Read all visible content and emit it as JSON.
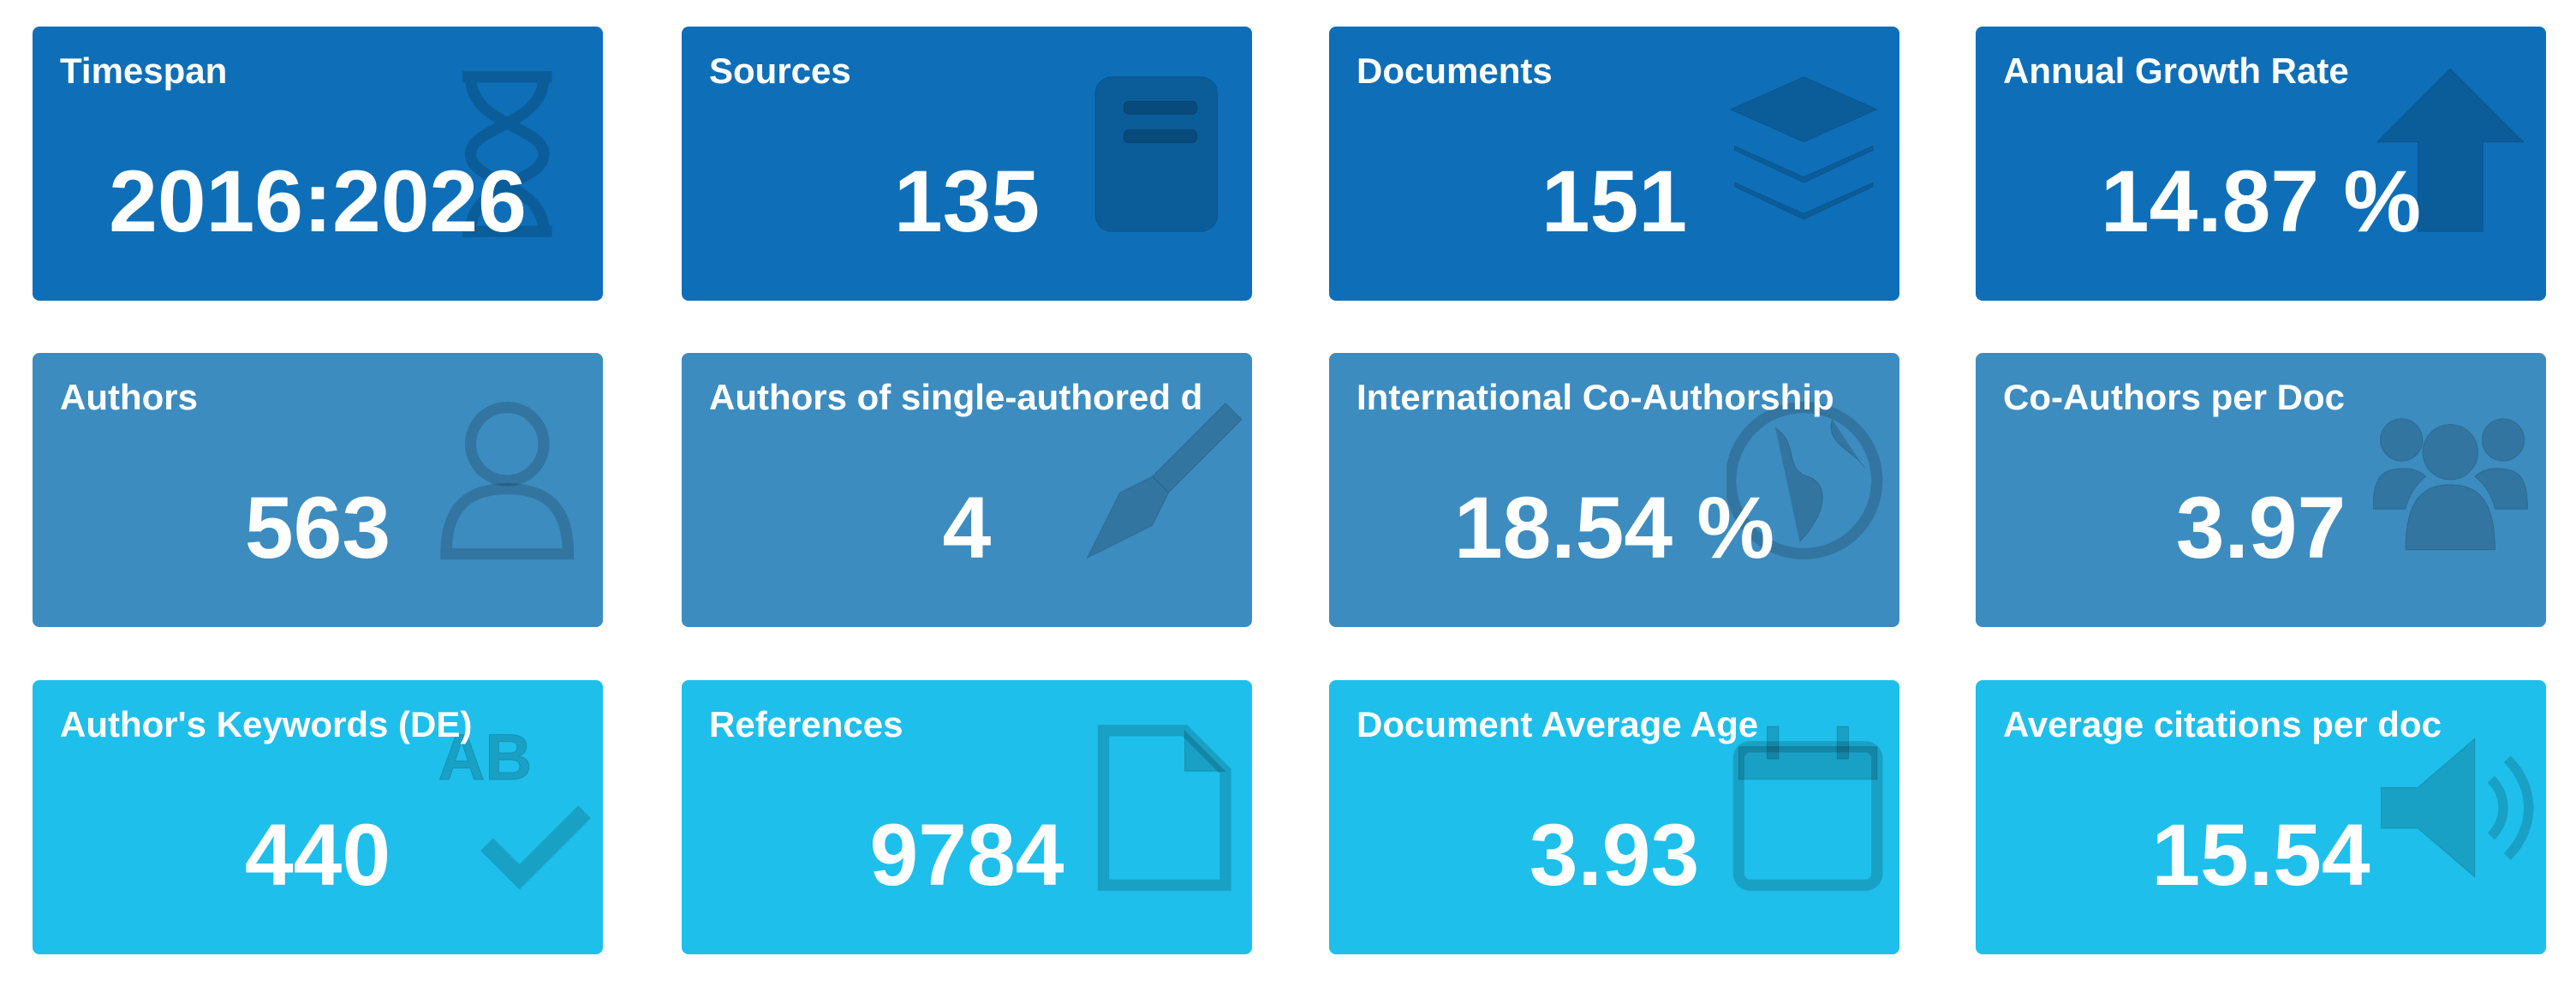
{
  "cards": [
    {
      "title": "Timespan",
      "value": "2016:2026"
    },
    {
      "title": "Sources",
      "value": "135"
    },
    {
      "title": "Documents",
      "value": "151"
    },
    {
      "title": "Annual Growth Rate",
      "value": "14.87 %"
    },
    {
      "title": "Authors",
      "value": "563"
    },
    {
      "title": "Authors of single-authored d",
      "value": "4"
    },
    {
      "title": "International Co-Authorship",
      "value": "18.54 %"
    },
    {
      "title": "Co-Authors per Doc",
      "value": "3.97"
    },
    {
      "title": "Author's Keywords (DE)",
      "value": "440"
    },
    {
      "title": "References",
      "value": "9784"
    },
    {
      "title": "Document Average Age",
      "value": "3.93"
    },
    {
      "title": "Average citations per doc",
      "value": "15.54"
    }
  ]
}
